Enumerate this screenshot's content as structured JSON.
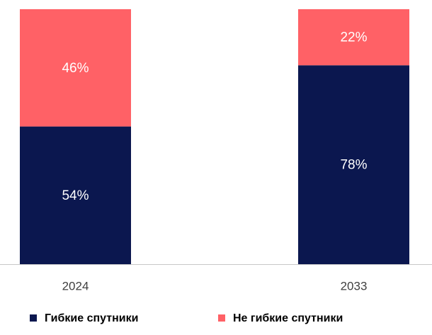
{
  "chart_data": {
    "type": "stacked_bar",
    "categories": [
      "2024",
      "2033"
    ],
    "series": [
      {
        "name": "Гибкие спутники",
        "color": "#0b174f",
        "values": [
          54,
          78
        ],
        "value_labels": [
          "54%",
          "78%"
        ]
      },
      {
        "name": "Не гибкие спутники",
        "color": "#ff6166",
        "values": [
          46,
          22
        ],
        "value_labels": [
          "46%",
          "22%"
        ]
      }
    ],
    "ylim": [
      0,
      100
    ],
    "legend": "bottom"
  }
}
